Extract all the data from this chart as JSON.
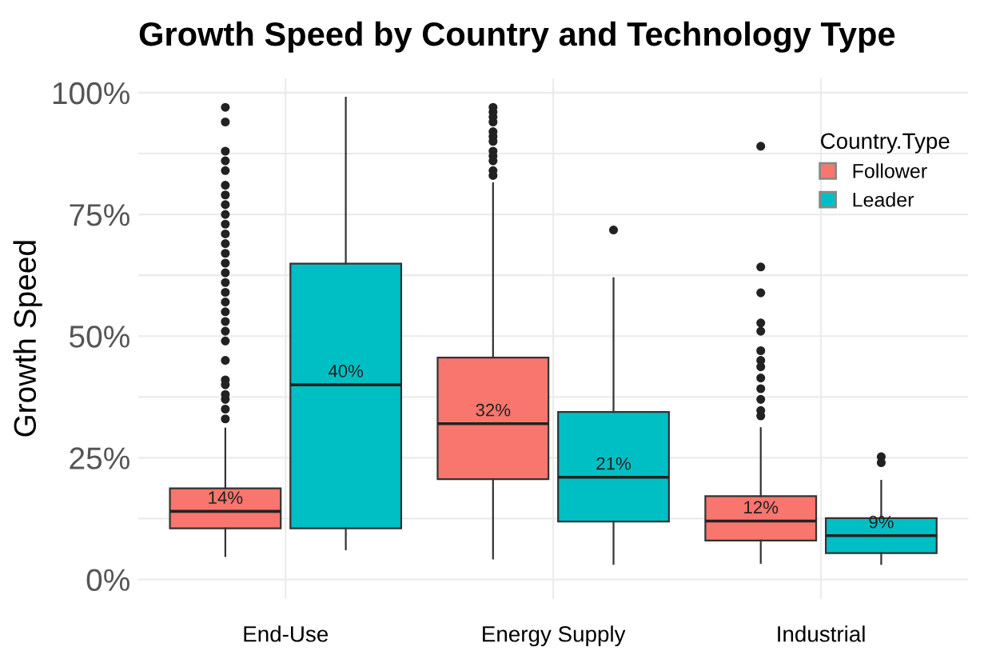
{
  "chart_data": {
    "type": "box",
    "title": "Growth Speed by Country and Technology Type",
    "ylabel": "Growth Speed",
    "legend_title": "Country.Type",
    "categories": [
      "End-Use",
      "Energy Supply",
      "Industrial"
    ],
    "series": [
      {
        "name": "Follower",
        "color": "#f8766d",
        "value_labels": [
          "14%",
          "32%",
          "12%"
        ],
        "boxes": [
          {
            "low": 4.8,
            "q1": 10.5,
            "median": 14,
            "q3": 18.7,
            "high": 31,
            "outliers": [
              33,
              35,
              37,
              38,
              40,
              41,
              45,
              49,
              51,
              53,
              55,
              57,
              59,
              61,
              63,
              65,
              67,
              69,
              71,
              73,
              75,
              77,
              79,
              81,
              84,
              86,
              88,
              94,
              97
            ]
          },
          {
            "low": 4.3,
            "q1": 20.6,
            "median": 32,
            "q3": 45.6,
            "high": 81.4,
            "outliers": [
              83,
              84,
              86,
              87,
              88,
              90,
              91,
              92,
              94,
              95,
              96,
              97
            ]
          },
          {
            "low": 3.4,
            "q1": 8,
            "median": 12,
            "q3": 17.1,
            "high": 31.1,
            "outliers": [
              33.6,
              34.7,
              37,
              39.2,
              41.4,
              43.7,
              45,
              47,
              51,
              52.7,
              58.9,
              64.2,
              89
            ]
          }
        ]
      },
      {
        "name": "Leader",
        "color": "#00bfc4",
        "value_labels": [
          "40%",
          "21%",
          "9%"
        ],
        "boxes": [
          {
            "low": 6.2,
            "q1": 10.5,
            "median": 40,
            "q3": 64.9,
            "high": 99
          },
          {
            "low": 3.2,
            "q1": 11.9,
            "median": 21,
            "q3": 34.4,
            "high": 61.9,
            "outliers": [
              71.8
            ]
          },
          {
            "low": 3.2,
            "q1": 5.4,
            "median": 9,
            "q3": 12.6,
            "high": 20.3,
            "outliers": [
              24,
              25.2
            ]
          }
        ]
      }
    ],
    "ylim": [
      -4,
      103
    ],
    "yticks": [
      {
        "value": 0,
        "label": "0%"
      },
      {
        "value": 12.5,
        "label": null
      },
      {
        "value": 25,
        "label": "25%"
      },
      {
        "value": 37.5,
        "label": null
      },
      {
        "value": 50,
        "label": "50%"
      },
      {
        "value": 62.5,
        "label": null
      },
      {
        "value": 75,
        "label": "75%"
      },
      {
        "value": 87.5,
        "label": null
      },
      {
        "value": 100,
        "label": "100%"
      }
    ],
    "grid": true,
    "legend": "top right"
  }
}
